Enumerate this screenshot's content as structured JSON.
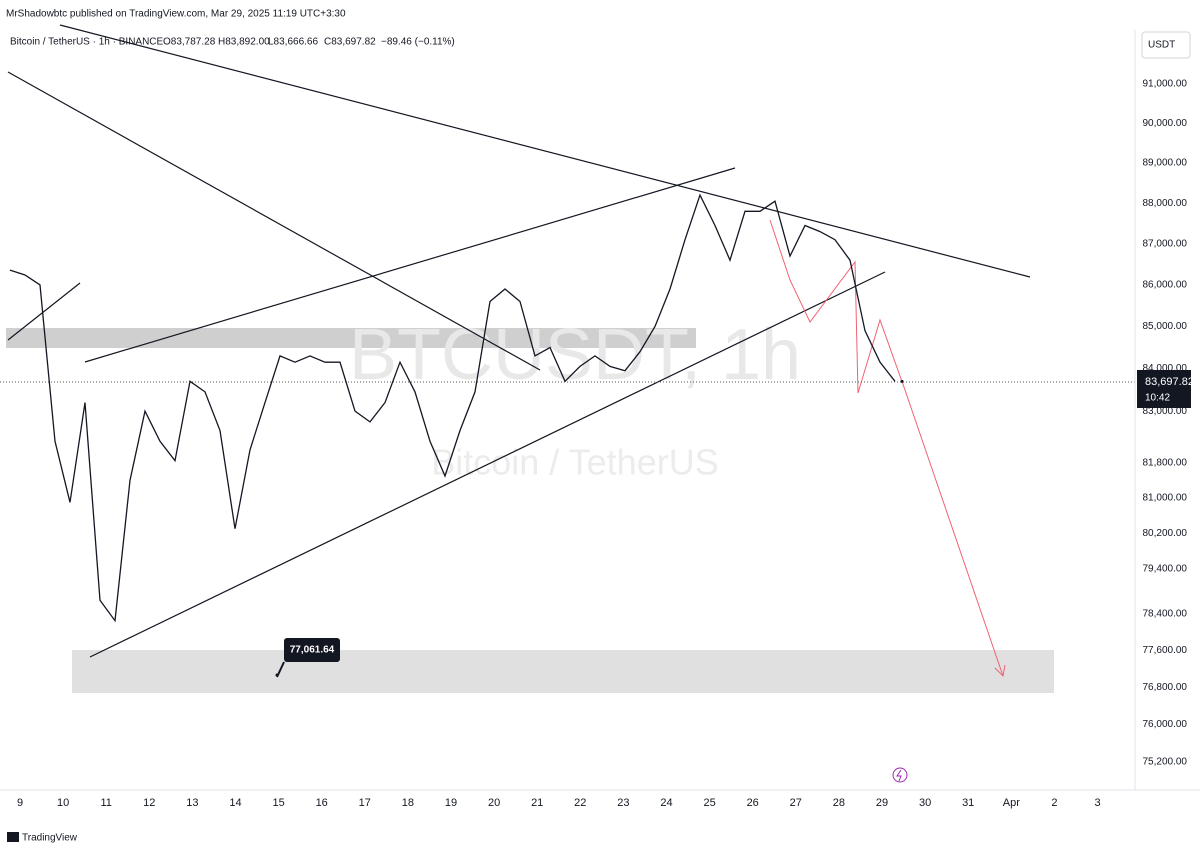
{
  "header": {
    "published": "MrShadowbtc published on TradingView.com, Mar 29, 2025 11:19 UTC+3:30"
  },
  "legend": {
    "symbol": "Bitcoin / TetherUS · 1h · BINANCE",
    "open": "O83,787.28",
    "high": "H83,892.00",
    "low": "L83,666.66",
    "close": "C83,697.82",
    "change": "−89.46 (−0.11%)"
  },
  "watermark": {
    "ticker": "BTCUSDT, 1h",
    "name": "Bitcoin / TetherUS"
  },
  "currency_button": "USDT",
  "price_axis": {
    "log": true,
    "ticks": [
      {
        "value": 91000,
        "label": "91,000.00"
      },
      {
        "value": 90000,
        "label": "90,000.00"
      },
      {
        "value": 89000,
        "label": "89,000.00"
      },
      {
        "value": 88000,
        "label": "88,000.00"
      },
      {
        "value": 87000,
        "label": "87,000.00"
      },
      {
        "value": 86000,
        "label": "86,000.00"
      },
      {
        "value": 85000,
        "label": "85,000.00"
      },
      {
        "value": 84000,
        "label": "84,000.00"
      },
      {
        "value": 83000,
        "label": "83,000.00"
      },
      {
        "value": 81800,
        "label": "81,800.00"
      },
      {
        "value": 81000,
        "label": "81,000.00"
      },
      {
        "value": 80200,
        "label": "80,200.00"
      },
      {
        "value": 79400,
        "label": "79,400.00"
      },
      {
        "value": 78400,
        "label": "78,400.00"
      },
      {
        "value": 77600,
        "label": "77,600.00"
      },
      {
        "value": 76800,
        "label": "76,800.00"
      },
      {
        "value": 76000,
        "label": "76,000.00"
      },
      {
        "value": 75200,
        "label": "75,200.00"
      }
    ]
  },
  "time_axis": {
    "labels": [
      "9",
      "10",
      "11",
      "12",
      "13",
      "14",
      "15",
      "16",
      "17",
      "18",
      "19",
      "20",
      "21",
      "22",
      "23",
      "24",
      "25",
      "26",
      "27",
      "28",
      "29",
      "30",
      "31",
      "Apr",
      "2",
      "3"
    ]
  },
  "price_path": {
    "values": [
      86360,
      86240,
      86000,
      82300,
      80900,
      83200,
      78700,
      78250,
      81400,
      83000,
      82300,
      81850,
      83700,
      83450,
      82550,
      80300,
      82100,
      83200,
      84300,
      84150,
      84300,
      84150,
      84150,
      83000,
      82750,
      83200,
      84150,
      83450,
      82300,
      81500,
      82550,
      83450,
      85600,
      85900,
      85600,
      84300,
      84500,
      83700,
      84050,
      84300,
      84050,
      83950,
      84400,
      85000,
      85900,
      87100,
      88200,
      87450,
      86600,
      87800,
      87800,
      88050,
      86700,
      87450,
      87300,
      87100,
      86600,
      84900,
      84150,
      83700
    ]
  },
  "last_price": {
    "value": 83697.82,
    "label": "83,697.82",
    "countdown": "10:42"
  },
  "annotation": {
    "value": 77061.64,
    "label": "77,061.64"
  },
  "footer": "TradingView"
}
